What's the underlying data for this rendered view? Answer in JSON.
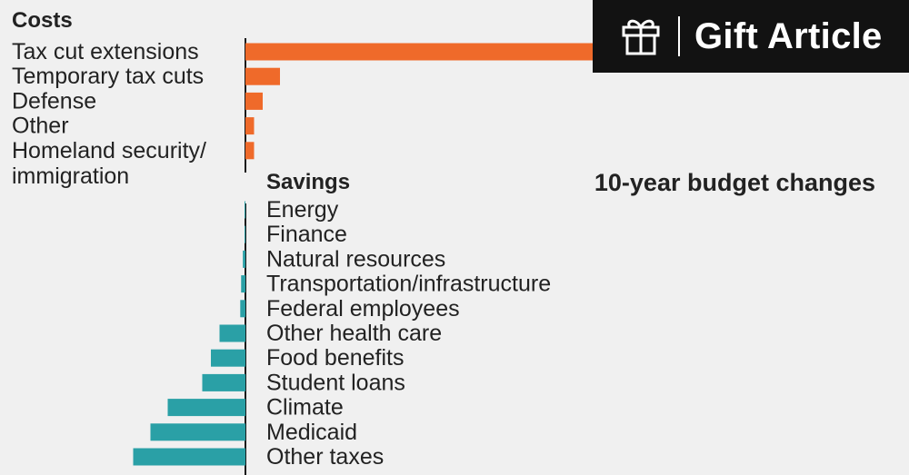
{
  "gift_button": {
    "label": "Gift Article",
    "icon": "gift-icon"
  },
  "colors": {
    "costs": "#ef6a2a",
    "savings": "#2aa0a6",
    "axis": "#1a1a1a",
    "background": "#f0f0f0"
  },
  "chart_data": [
    {
      "type": "bar",
      "orientation": "horizontal",
      "title": "10-year budget changes",
      "header": "Costs",
      "categories": [
        "Tax cut extensions",
        "Temporary tax cuts",
        "Defense",
        "Other",
        "Homeland security/ immigration"
      ],
      "values": [
        4.6,
        0.4,
        0.2,
        0.1,
        0.1
      ],
      "grid": false
    },
    {
      "type": "bar",
      "orientation": "horizontal",
      "header": "Savings",
      "categories": [
        "Energy",
        "Finance",
        "Natural resources",
        "Transportation/infrastructure",
        "Federal employees",
        "Other health care",
        "Food benefits",
        "Student loans",
        "Climate",
        "Medicaid",
        "Other taxes"
      ],
      "values": [
        -0.01,
        -0.01,
        -0.03,
        -0.05,
        -0.06,
        -0.3,
        -0.4,
        -0.5,
        -0.9,
        -1.1,
        -1.3
      ],
      "grid": false
    }
  ]
}
